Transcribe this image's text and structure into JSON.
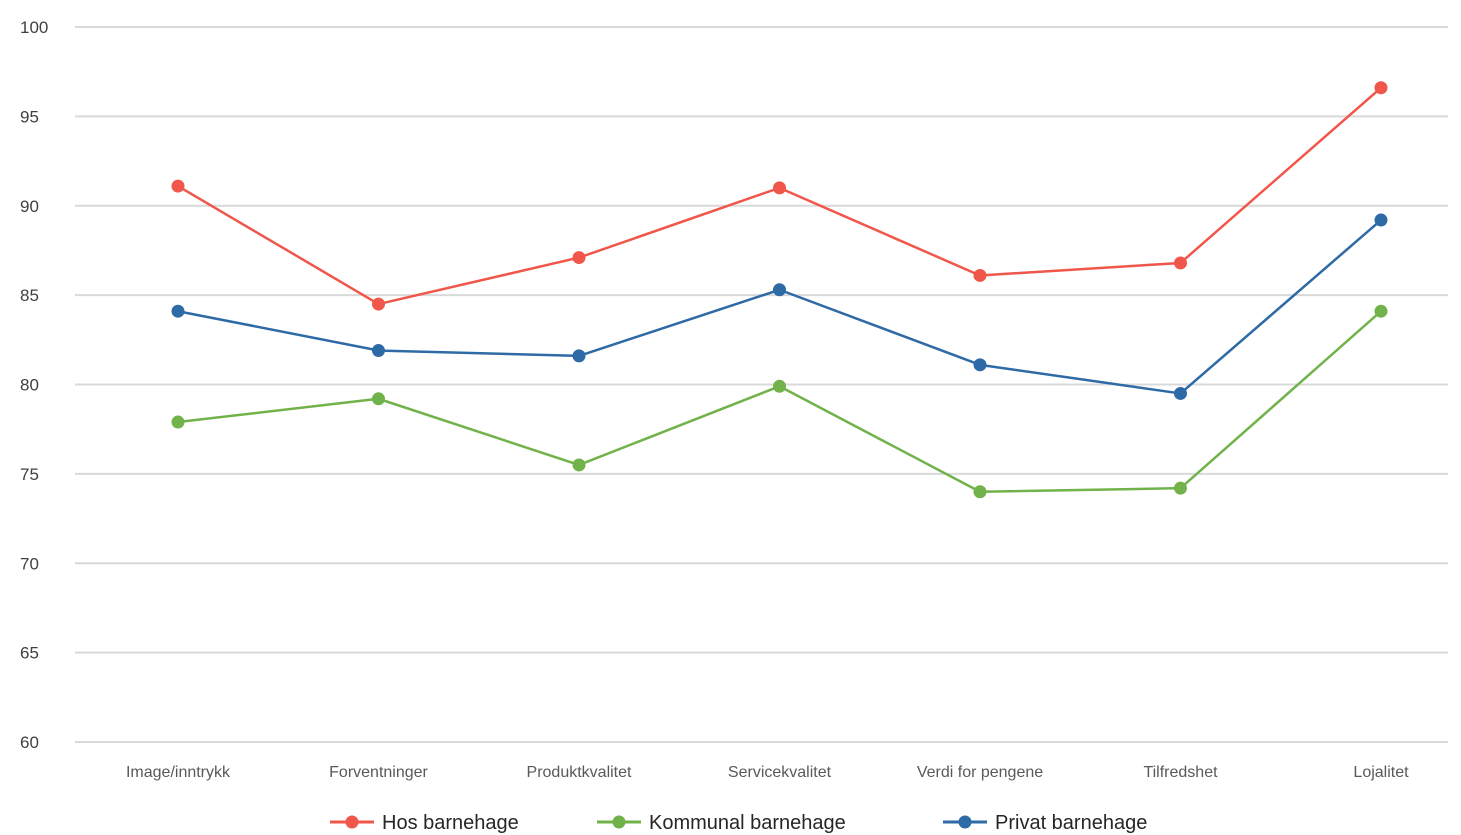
{
  "chart_data": {
    "type": "line",
    "title": "",
    "xlabel": "",
    "ylabel": "",
    "ylim": [
      60,
      100
    ],
    "yticks": [
      "100",
      "95",
      "90",
      "85",
      "80",
      "75",
      "70",
      "65",
      "60"
    ],
    "grid": true,
    "legend_position": "bottom",
    "categories": [
      "Image/inntrykk",
      "Forventninger",
      "Produktkvalitet",
      "Servicekvalitet",
      "Verdi for pengene",
      "Tilfredshet",
      "Lojalitet"
    ],
    "series": [
      {
        "name": "Hos barnehage",
        "color": "#f0564a",
        "values": [
          91.1,
          84.5,
          87.1,
          91.0,
          86.1,
          86.8,
          96.6
        ]
      },
      {
        "name": "Kommunal barnehage",
        "color": "#72b24a",
        "values": [
          77.9,
          79.2,
          75.5,
          79.9,
          74.0,
          74.2,
          84.1
        ]
      },
      {
        "name": "Privat barnehage",
        "color": "#2e6aa6",
        "values": [
          84.1,
          81.9,
          81.6,
          85.3,
          81.1,
          79.5,
          89.2
        ]
      }
    ]
  }
}
